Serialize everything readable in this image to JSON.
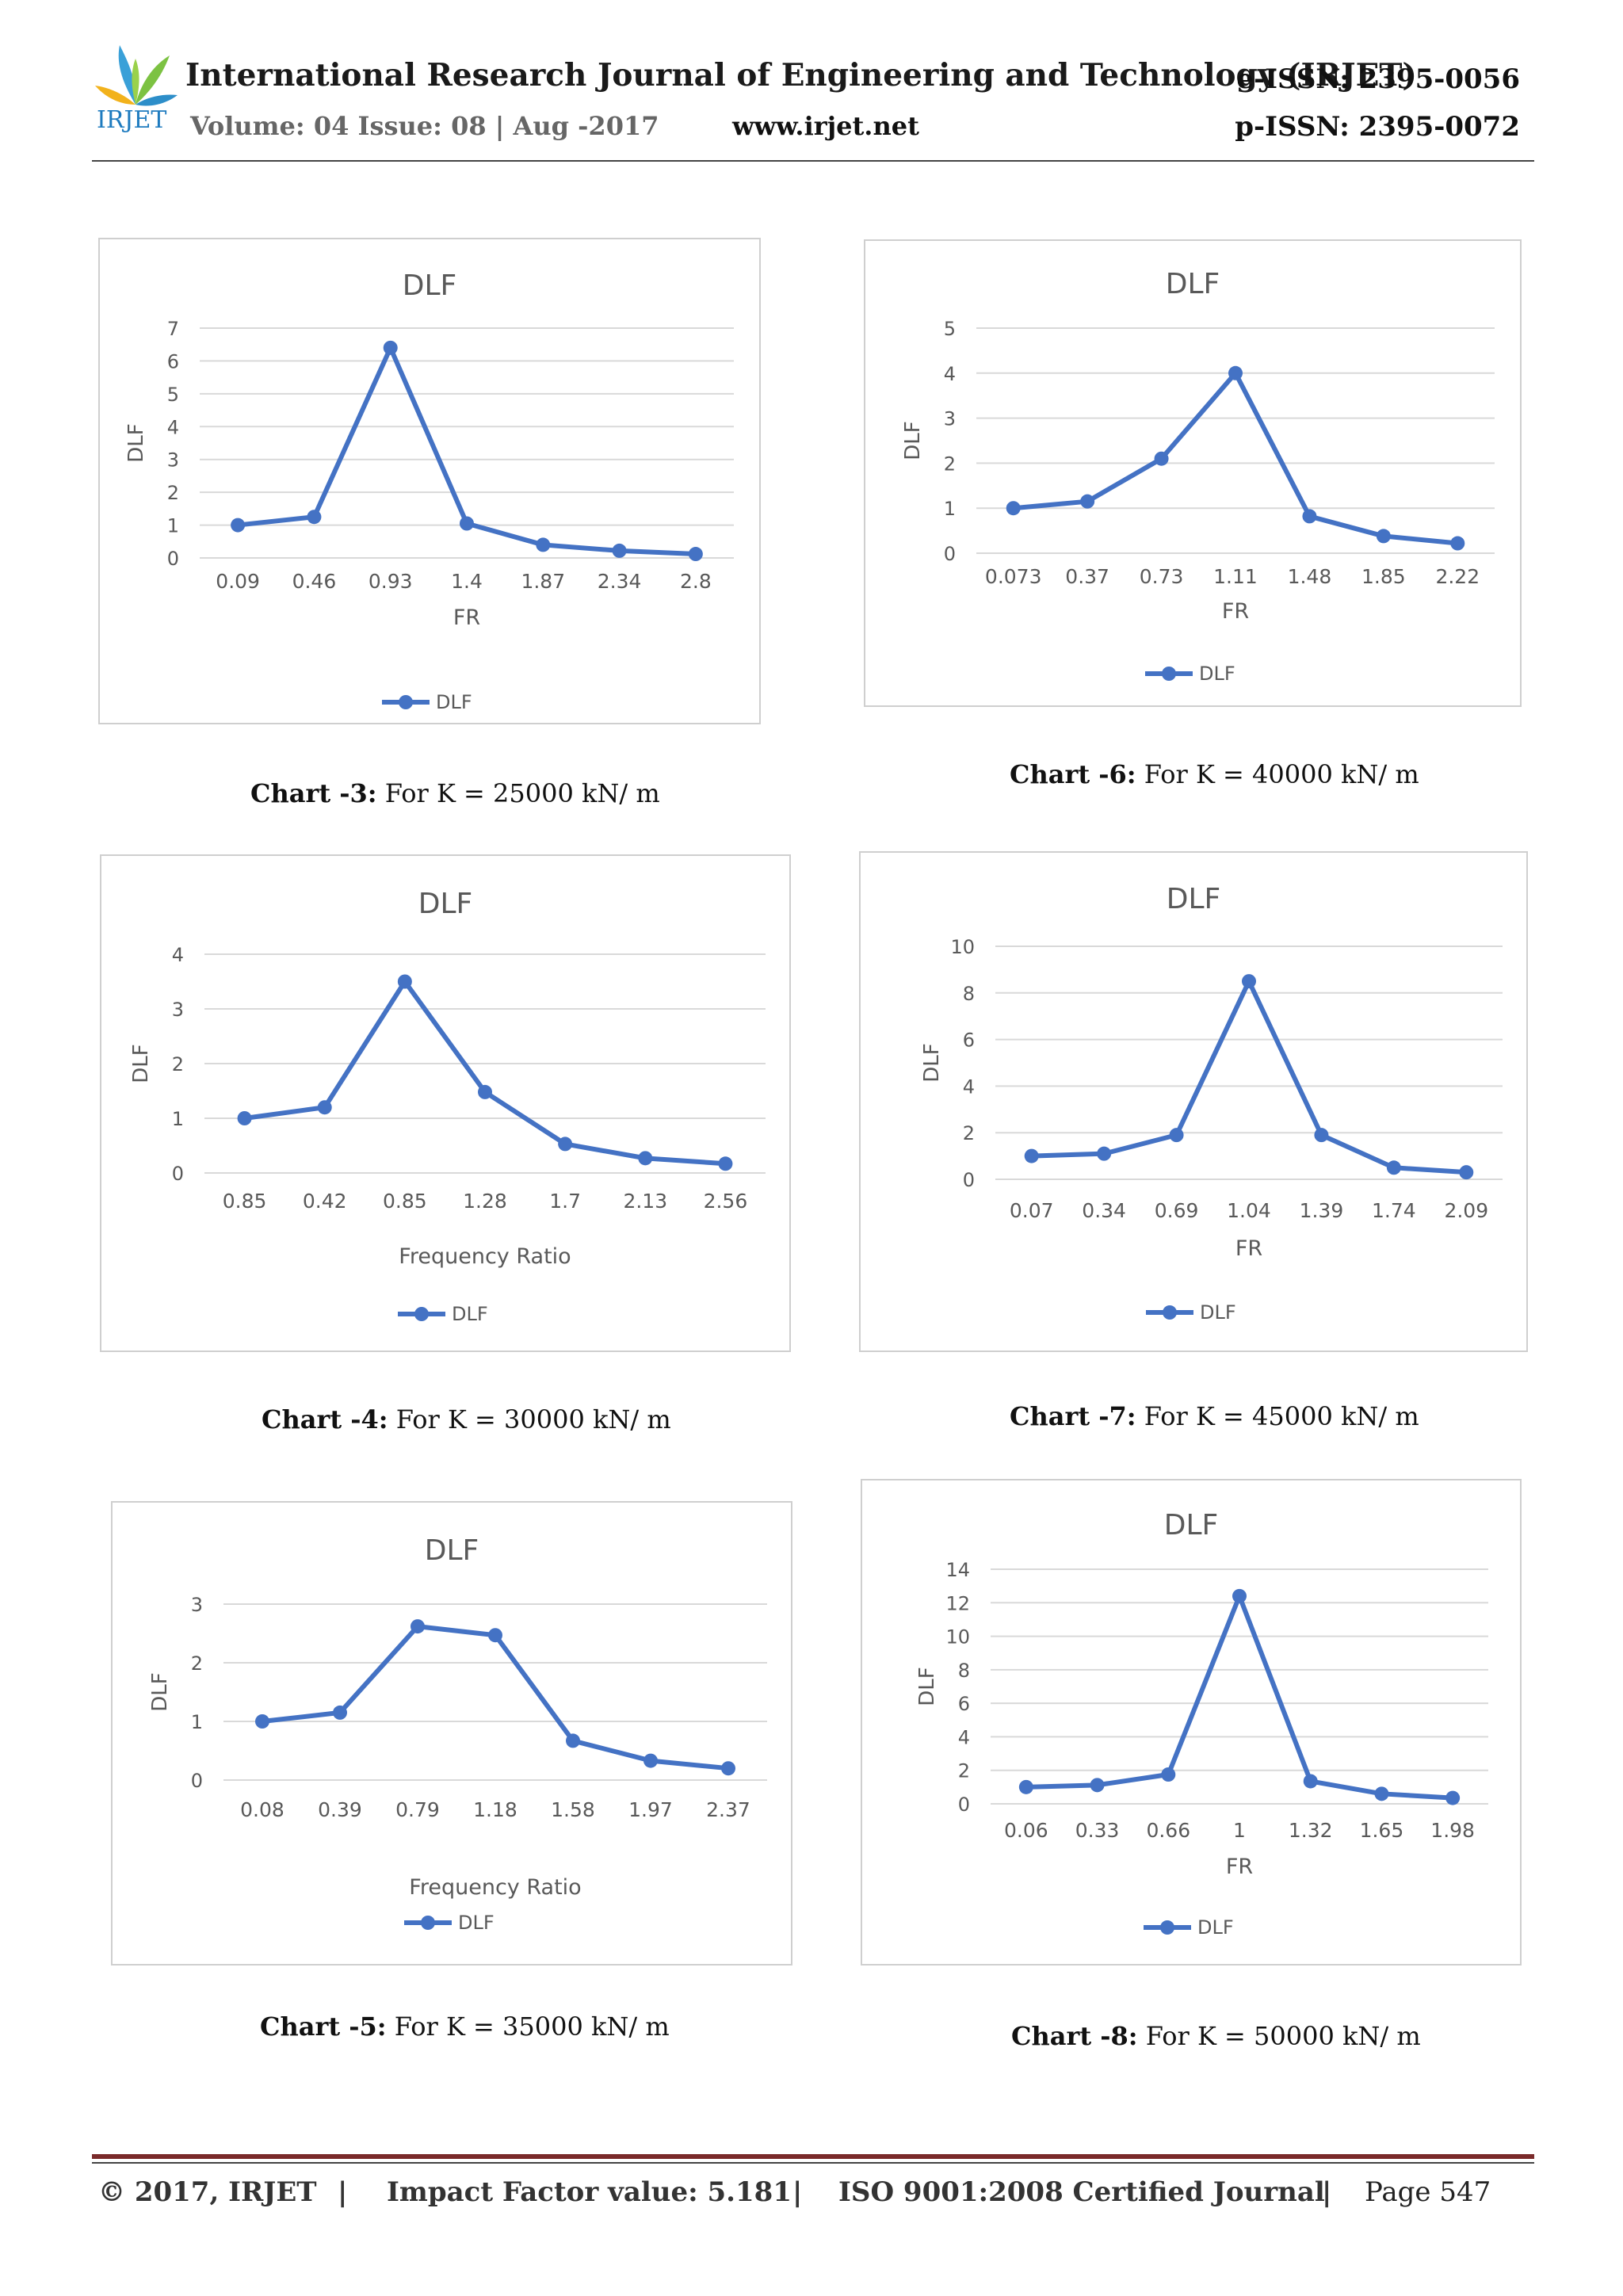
{
  "header": {
    "logo_text": "IRJET",
    "journal_title": "International Research Journal of Engineering and Technology (IRJET)",
    "volume_info": "Volume: 04 Issue: 08 | Aug -2017",
    "website": "www.irjet.net",
    "e_issn": "e-ISSN: 2395-0056",
    "p_issn": "p-ISSN: 2395-0072"
  },
  "captions": [
    {
      "label": "Chart -3:",
      "text": " For K = 25000 kN/ m"
    },
    {
      "label": "Chart -4:",
      "text": " For K = 30000 kN/ m"
    },
    {
      "label": "Chart -5:",
      "text": " For K = 35000 kN/ m"
    },
    {
      "label": "Chart -6:",
      "text": " For K = 40000 kN/ m"
    },
    {
      "label": "Chart -7:",
      "text": " For K = 45000 kN/ m"
    },
    {
      "label": "Chart -8:",
      "text": " For K = 50000 kN/ m"
    }
  ],
  "chart_data": [
    {
      "type": "line",
      "title": "DLF",
      "xlabel": "FR",
      "ylabel": "DLF",
      "categories": [
        "0.09",
        "0.46",
        "0.93",
        "1.4",
        "1.87",
        "2.34",
        "2.8"
      ],
      "series": [
        {
          "name": "DLF",
          "values": [
            1.0,
            1.25,
            6.4,
            1.05,
            0.4,
            0.22,
            0.12
          ]
        }
      ],
      "ylim": [
        0,
        7
      ],
      "yticks": [
        0,
        1,
        2,
        3,
        4,
        5,
        6,
        7
      ],
      "grid": true,
      "legend": "bottom",
      "color": "#4472C4"
    },
    {
      "type": "line",
      "title": "DLF",
      "xlabel": "Frequency Ratio",
      "ylabel": "DLF",
      "categories": [
        "0.85",
        "0.42",
        "0.85",
        "1.28",
        "1.7",
        "2.13",
        "2.56"
      ],
      "series": [
        {
          "name": "DLF",
          "values": [
            1.0,
            1.2,
            3.5,
            1.48,
            0.53,
            0.27,
            0.17
          ]
        }
      ],
      "ylim": [
        0,
        4
      ],
      "yticks": [
        0,
        1,
        2,
        3,
        4
      ],
      "grid": true,
      "legend": "bottom",
      "color": "#4472C4"
    },
    {
      "type": "line",
      "title": "DLF",
      "xlabel": "Frequency Ratio",
      "ylabel": "DLF",
      "categories": [
        "0.08",
        "0.39",
        "0.79",
        "1.18",
        "1.58",
        "1.97",
        "2.37"
      ],
      "series": [
        {
          "name": "DLF",
          "values": [
            1.0,
            1.15,
            2.62,
            2.47,
            0.67,
            0.33,
            0.2
          ]
        }
      ],
      "ylim": [
        0,
        3
      ],
      "yticks": [
        0,
        1,
        2,
        3
      ],
      "grid": true,
      "legend": "bottom",
      "color": "#4472C4"
    },
    {
      "type": "line",
      "title": "DLF",
      "xlabel": "FR",
      "ylabel": "DLF",
      "categories": [
        "0.073",
        "0.37",
        "0.73",
        "1.11",
        "1.48",
        "1.85",
        "2.22"
      ],
      "series": [
        {
          "name": "DLF",
          "values": [
            1.0,
            1.15,
            2.1,
            4.0,
            0.82,
            0.38,
            0.22
          ]
        }
      ],
      "ylim": [
        0,
        5
      ],
      "yticks": [
        0,
        1,
        2,
        3,
        4,
        5
      ],
      "grid": true,
      "legend": "bottom",
      "color": "#4472C4"
    },
    {
      "type": "line",
      "title": "DLF",
      "xlabel": "FR",
      "ylabel": "DLF",
      "categories": [
        "0.07",
        "0.34",
        "0.69",
        "1.04",
        "1.39",
        "1.74",
        "2.09"
      ],
      "series": [
        {
          "name": "DLF",
          "values": [
            1.0,
            1.1,
            1.9,
            8.5,
            1.9,
            0.5,
            0.3
          ]
        }
      ],
      "ylim": [
        0,
        10
      ],
      "yticks": [
        0,
        2,
        4,
        6,
        8,
        10
      ],
      "grid": true,
      "legend": "bottom",
      "color": "#4472C4"
    },
    {
      "type": "line",
      "title": "DLF",
      "xlabel": "FR",
      "ylabel": "DLF",
      "categories": [
        "0.06",
        "0.33",
        "0.66",
        "1",
        "1.32",
        "1.65",
        "1.98"
      ],
      "series": [
        {
          "name": "DLF",
          "values": [
            1.0,
            1.12,
            1.75,
            12.4,
            1.35,
            0.6,
            0.35
          ]
        }
      ],
      "ylim": [
        0,
        14
      ],
      "yticks": [
        0,
        2,
        4,
        6,
        8,
        10,
        12,
        14
      ],
      "grid": true,
      "legend": "bottom",
      "color": "#4472C4"
    }
  ],
  "footer": {
    "copyright": "© 2017, IRJET",
    "impact": "Impact Factor value: 5.181",
    "iso": "ISO 9001:2008 Certified Journal",
    "page": "Page 547",
    "separator": "|"
  }
}
